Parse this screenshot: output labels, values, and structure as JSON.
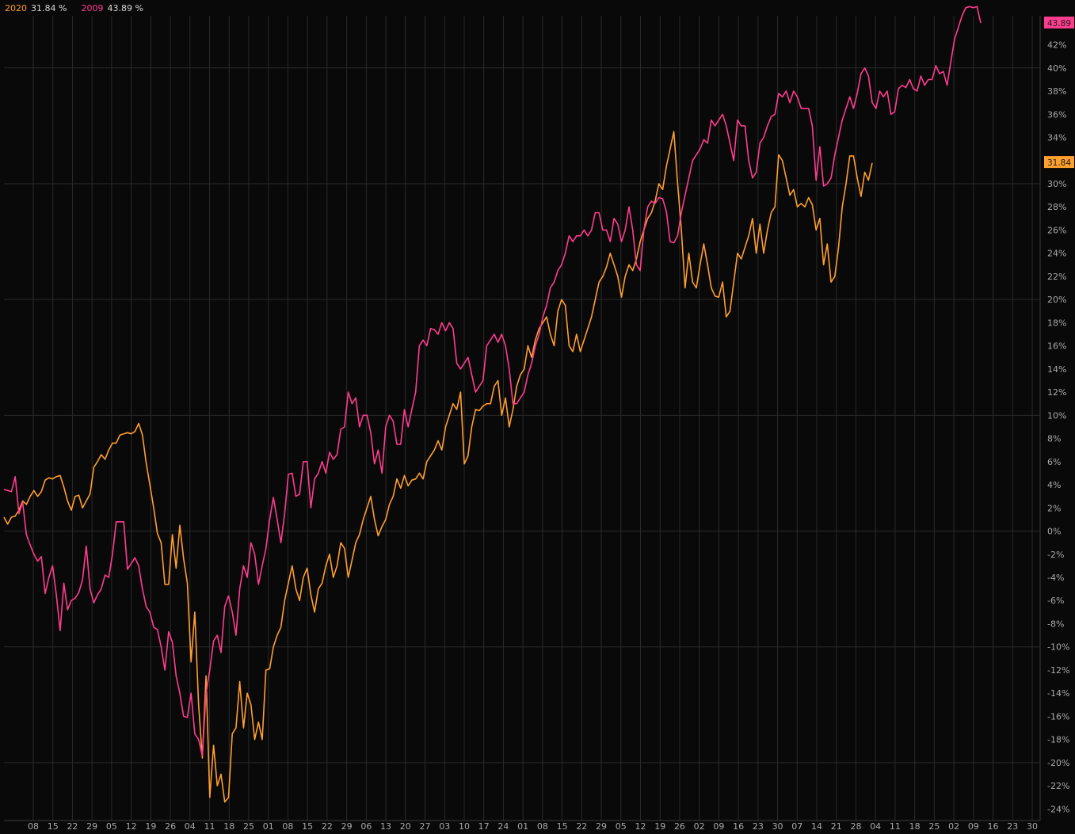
{
  "colors": {
    "background": "#0a0909",
    "grid": "#2a2a2a",
    "axis_text": "#a9a9a9",
    "series_2020": "#ff9f2e",
    "series_2009": "#ff3d8f"
  },
  "legend": [
    {
      "name": "2020",
      "value_text": "31.84 %"
    },
    {
      "name": "2009",
      "value_text": "43.89 %"
    }
  ],
  "badges": [
    {
      "series": "2009",
      "text": "43.89"
    },
    {
      "series": "2020",
      "text": "31.84"
    }
  ],
  "chart_data": {
    "type": "line",
    "grid": true,
    "ylim": [
      -25,
      44.5
    ],
    "y_ticks": [
      42,
      40,
      38,
      36,
      34,
      32,
      30,
      28,
      26,
      24,
      22,
      20,
      18,
      16,
      14,
      12,
      10,
      8,
      6,
      4,
      2,
      0,
      -2,
      -4,
      -6,
      -8,
      -10,
      -12,
      -14,
      -16,
      -18,
      -20,
      -22,
      -24
    ],
    "y_tick_suffix": "%",
    "x_ticks": [
      "08",
      "15",
      "22",
      "29",
      "05",
      "12",
      "19",
      "26",
      "04",
      "11",
      "18",
      "25",
      "01",
      "08",
      "15",
      "22",
      "29",
      "06",
      "13",
      "20",
      "27",
      "03",
      "10",
      "17",
      "24",
      "01",
      "08",
      "15",
      "22",
      "29",
      "05",
      "12",
      "19",
      "26",
      "02",
      "09",
      "16",
      "23",
      "30",
      "07",
      "14",
      "21",
      "28",
      "04",
      "11",
      "18",
      "25",
      "02",
      "09",
      "16",
      "23",
      "30"
    ],
    "series": [
      {
        "name": "2020",
        "values": [
          1.2,
          0.6,
          1.2,
          1.3,
          1.8,
          2.6,
          2.3,
          3.0,
          3.5,
          3.0,
          3.4,
          4.4,
          4.6,
          4.5,
          4.7,
          4.8,
          3.8,
          2.6,
          1.8,
          3.0,
          3.1,
          2.0,
          2.6,
          3.2,
          5.5,
          6.0,
          6.6,
          6.2,
          7.0,
          7.6,
          7.6,
          8.3,
          8.4,
          8.5,
          8.4,
          8.6,
          9.3,
          8.3,
          5.9,
          4.0,
          2.0,
          -0.2,
          -1.0,
          -4.6,
          -4.6,
          -0.3,
          -3.2,
          0.5,
          -2.4,
          -4.5,
          -11.3,
          -7.0,
          -15.0,
          -19.6,
          -12.5,
          -23.0,
          -18.5,
          -22.0,
          -21.0,
          -23.4,
          -23.0,
          -17.5,
          -17.0,
          -13.0,
          -17.0,
          -14.0,
          -15.0,
          -18.0,
          -16.5,
          -18.0,
          -12.0,
          -11.9,
          -10.0,
          -9.0,
          -8.3,
          -6.0,
          -4.5,
          -3.0,
          -5.0,
          -6.0,
          -4.0,
          -3.2,
          -5.5,
          -7.0,
          -5.0,
          -4.5,
          -3.0,
          -2.0,
          -4.0,
          -3.0,
          -1.0,
          -1.5,
          -4.0,
          -2.5,
          -1.0,
          -0.3,
          1.0,
          2.0,
          3.0,
          1.0,
          -0.4,
          0.4,
          1.0,
          2.3,
          3.0,
          4.5,
          3.7,
          4.8,
          3.9,
          4.4,
          4.5,
          5.0,
          4.5,
          6.0,
          6.5,
          7.0,
          7.8,
          7.0,
          9.0,
          10.0,
          11.0,
          10.5,
          12.0,
          5.8,
          6.5,
          9.0,
          10.5,
          10.4,
          10.8,
          11.0,
          11.0,
          12.5,
          13.0,
          10.0,
          11.5,
          9.0,
          10.5,
          12.5,
          13.5,
          14.0,
          16.0,
          15.0,
          16.5,
          17.5,
          18.0,
          18.5,
          17.0,
          16.0,
          19.0,
          20.0,
          19.5,
          16.0,
          15.5,
          17.0,
          15.5,
          16.5,
          17.5,
          18.5,
          20.0,
          21.5,
          22.0,
          22.8,
          24.0,
          23.0,
          22.0,
          20.2,
          22.0,
          23.0,
          22.5,
          23.5,
          25.0,
          26.0,
          27.0,
          27.5,
          28.5,
          30.0,
          29.5,
          31.5,
          33.0,
          34.5,
          30.0,
          26.0,
          21.0,
          24.0,
          21.5,
          21.0,
          23.0,
          24.8,
          23.0,
          21.0,
          20.3,
          20.2,
          21.5,
          18.5,
          19.0,
          21.5,
          24.0,
          23.5,
          24.5,
          25.5,
          27.0,
          24.0,
          26.5,
          24.0,
          26.0,
          27.5,
          28.0,
          32.5,
          32.0,
          30.5,
          29.0,
          29.5,
          28.0,
          28.3,
          28.0,
          28.8,
          28.2,
          26.0,
          27.0,
          23.0,
          24.8,
          21.5,
          22.0,
          24.5,
          28.0,
          30.0,
          32.4,
          32.4,
          30.5,
          28.9,
          31.0,
          30.3,
          31.8
        ],
        "end_value": 31.84
      },
      {
        "name": "2009",
        "values": [
          3.6,
          3.5,
          3.4,
          4.7,
          1.5,
          2.5,
          -0.3,
          -1.2,
          -2.0,
          -2.6,
          -2.2,
          -5.4,
          -4.0,
          -3.0,
          -5.5,
          -8.6,
          -4.5,
          -6.8,
          -6.0,
          -5.8,
          -5.3,
          -4.2,
          -1.3,
          -5.0,
          -6.2,
          -5.5,
          -5.0,
          -3.8,
          -4.0,
          -2.0,
          0.8,
          0.8,
          0.8,
          -3.3,
          -2.8,
          -2.3,
          -3.0,
          -5.0,
          -6.5,
          -7.0,
          -8.3,
          -8.5,
          -10.0,
          -12.0,
          -8.7,
          -9.6,
          -12.5,
          -14.0,
          -16.0,
          -16.1,
          -14.0,
          -17.5,
          -18.0,
          -19.4,
          -14.0,
          -12.0,
          -9.5,
          -9.0,
          -10.5,
          -6.5,
          -5.6,
          -7.0,
          -9.0,
          -5.0,
          -3.0,
          -4.0,
          -1.0,
          -2.0,
          -4.6,
          -3.0,
          -1.5,
          1.0,
          2.9,
          1.0,
          -1.0,
          1.5,
          4.9,
          5.0,
          3.0,
          3.2,
          6.0,
          6.0,
          2.0,
          4.5,
          5.0,
          6.0,
          5.0,
          6.8,
          6.2,
          6.6,
          8.8,
          9.0,
          12.0,
          11.0,
          11.5,
          9.0,
          10.0,
          10.0,
          8.5,
          5.8,
          7.0,
          5.0,
          9.0,
          10.0,
          9.5,
          7.5,
          7.5,
          10.5,
          9.0,
          10.5,
          12.0,
          16.0,
          16.5,
          16.0,
          17.5,
          17.4,
          17.0,
          18.0,
          17.3,
          18.0,
          17.5,
          14.5,
          14.0,
          14.5,
          15.0,
          13.5,
          12.0,
          12.5,
          13.0,
          16.0,
          16.5,
          17.0,
          16.3,
          17.0,
          16.0,
          14.0,
          11.0,
          11.0,
          11.5,
          12.0,
          13.5,
          14.5,
          16.0,
          17.0,
          18.5,
          19.5,
          21.0,
          21.5,
          22.5,
          23.0,
          24.0,
          25.5,
          25.0,
          25.5,
          25.5,
          26.0,
          25.5,
          26.0,
          27.5,
          27.5,
          26.0,
          26.0,
          25.0,
          27.0,
          26.5,
          25.0,
          26.0,
          28.0,
          26.0,
          23.0,
          22.5,
          26.0,
          28.0,
          28.5,
          28.3,
          28.8,
          28.7,
          27.6,
          25.0,
          24.9,
          25.5,
          27.5,
          29.0,
          30.5,
          32.0,
          32.5,
          33.0,
          33.8,
          33.5,
          35.5,
          35.0,
          35.5,
          36.0,
          35.0,
          33.5,
          32.0,
          35.5,
          35.0,
          35.0,
          32.0,
          30.5,
          31.0,
          33.5,
          34.0,
          35.0,
          35.8,
          36.0,
          37.8,
          37.5,
          38.0,
          37.0,
          38.0,
          37.5,
          36.5,
          36.5,
          36.5,
          35.0,
          30.3,
          33.2,
          29.8,
          30.0,
          30.5,
          32.5,
          34.0,
          35.5,
          36.5,
          37.5,
          36.5,
          37.8,
          39.5,
          40.0,
          39.3,
          37.0,
          36.5,
          38.0,
          37.5,
          38.0,
          36.0,
          36.2,
          38.2,
          38.5,
          38.3,
          39.0,
          38.2,
          38.0,
          39.3,
          38.5,
          39.0,
          39.0,
          40.2,
          39.5,
          39.7,
          38.5,
          40.5,
          42.5,
          43.5,
          44.5,
          45.2,
          45.3,
          45.2,
          45.3,
          43.89
        ],
        "end_value": 43.89
      }
    ]
  }
}
